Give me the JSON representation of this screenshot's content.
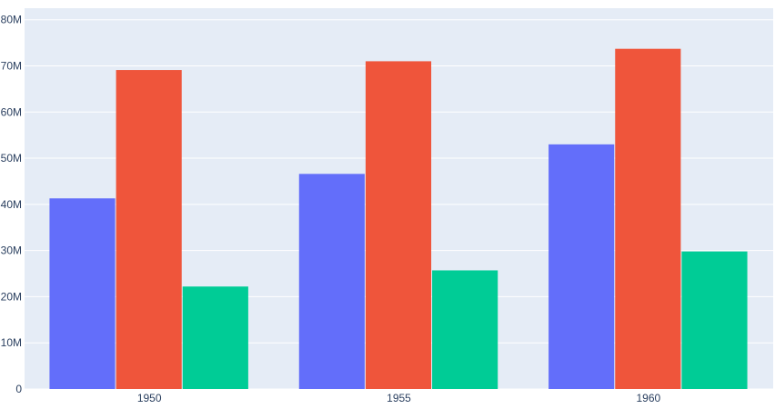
{
  "chart_data": {
    "type": "bar",
    "title": "",
    "xlabel": "",
    "ylabel": "",
    "categories": [
      "1950",
      "1955",
      "1960"
    ],
    "series": [
      {
        "color": "#636efa",
        "values": [
          41300000,
          46600000,
          53000000
        ]
      },
      {
        "color": "#ef553b",
        "values": [
          69100000,
          71000000,
          73700000
        ]
      },
      {
        "color": "#00cc96",
        "values": [
          22200000,
          25700000,
          29800000
        ]
      }
    ],
    "ylim": [
      0,
      82500000
    ],
    "yticks": [
      0,
      10000000,
      20000000,
      30000000,
      40000000,
      50000000,
      60000000,
      70000000,
      80000000
    ],
    "ytick_labels": [
      "0",
      "10M",
      "20M",
      "30M",
      "40M",
      "50M",
      "60M",
      "70M",
      "80M"
    ],
    "grid": true,
    "legend": "none",
    "colors": {
      "plot_background": "#e5ecf6",
      "gridline": "#ffffff",
      "text": "#2a3f5f"
    }
  }
}
